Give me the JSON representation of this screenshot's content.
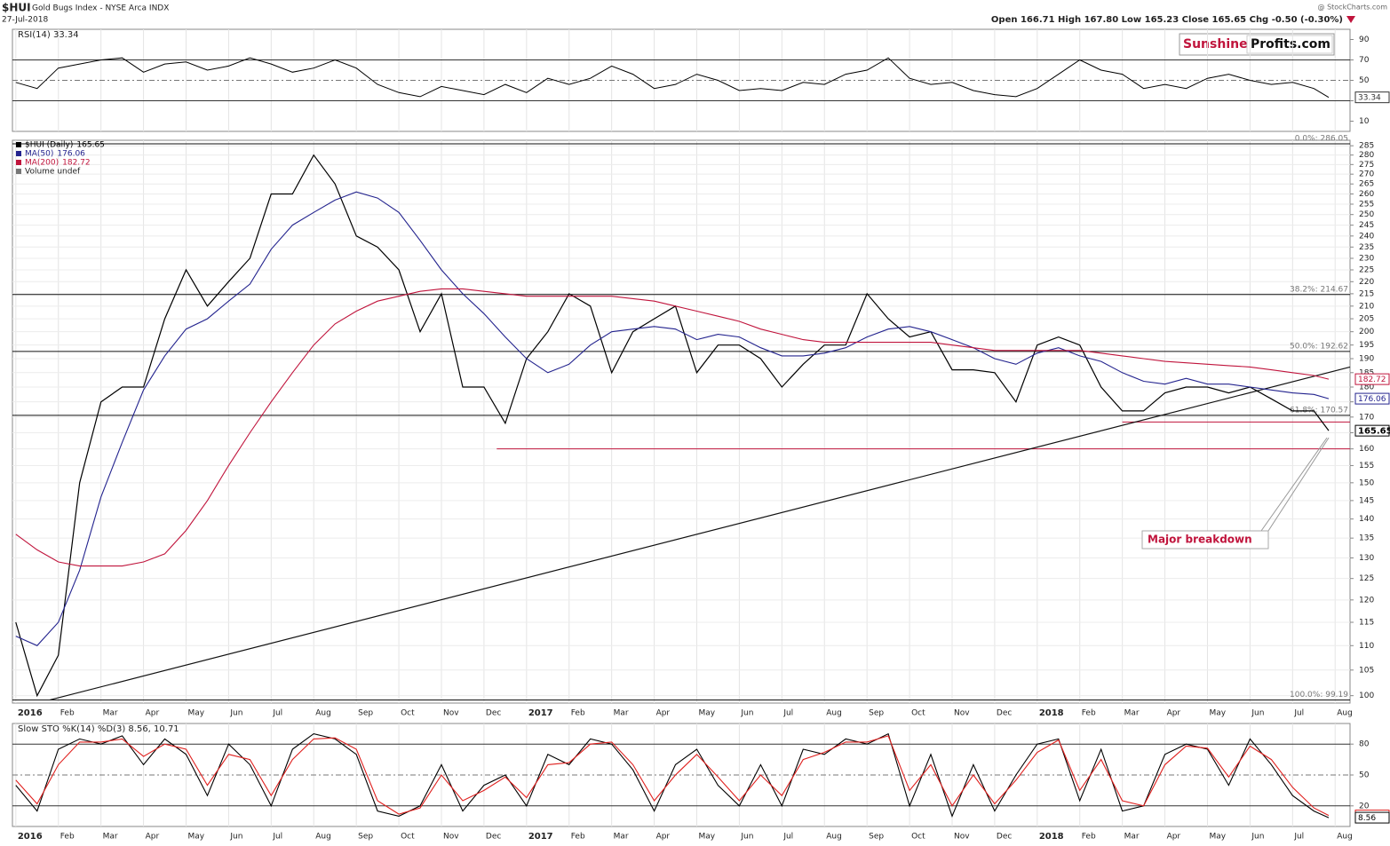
{
  "header": {
    "symbol": "$HUI",
    "name": "Gold Bugs Index - NYSE Arca INDX",
    "date": "27-Jul-2018",
    "source": "@ StockCharts.com",
    "quote": "Open 166.71 High 167.80 Low 165.23 Close 165.65 Chg -0.50 (-0.30%)",
    "logo": {
      "red": "Sunshine",
      "black": "Profits.com"
    }
  },
  "chart_data": [
    {
      "type": "line",
      "title": "RSI(14) 33.34",
      "color": "#000000",
      "x": [
        0,
        0.5,
        1,
        1.5,
        2,
        2.5,
        3,
        3.5,
        4,
        4.5,
        5,
        5.5,
        6,
        6.5,
        7,
        7.5,
        8,
        8.5,
        9,
        9.5,
        10,
        10.5,
        11,
        11.5,
        12,
        12.5,
        13,
        13.5,
        14,
        14.5,
        15,
        15.5,
        16,
        16.5,
        17,
        17.5,
        18,
        18.5,
        19,
        19.5,
        20,
        20.5,
        21,
        21.5,
        22,
        22.5,
        23,
        23.5,
        24,
        24.5,
        25,
        25.5,
        26,
        26.5,
        27,
        27.5,
        28,
        28.5,
        29,
        29.5,
        30,
        30.5,
        30.85
      ],
      "values": [
        48,
        42,
        62,
        66,
        70,
        72,
        58,
        66,
        68,
        60,
        64,
        72,
        66,
        58,
        62,
        70,
        62,
        46,
        38,
        34,
        44,
        40,
        36,
        46,
        38,
        52,
        46,
        52,
        64,
        56,
        42,
        46,
        56,
        50,
        40,
        42,
        40,
        48,
        46,
        56,
        60,
        72,
        52,
        46,
        48,
        40,
        36,
        34,
        42,
        56,
        70,
        60,
        56,
        42,
        46,
        42,
        52,
        56,
        50,
        46,
        48,
        42,
        33.34
      ],
      "xlim": [
        -0.08,
        31.35
      ],
      "ylim": [
        0,
        100
      ],
      "yticks": [
        10,
        30,
        50,
        70,
        90
      ],
      "level_lines": [
        {
          "value": 70,
          "dashed": false
        },
        {
          "value": 50,
          "dashed": true
        },
        {
          "value": 30,
          "dashed": false
        }
      ]
    },
    {
      "type": "line",
      "log_scale": true,
      "grid": true,
      "volume_label": "Volume undef",
      "x": [
        0,
        0.5,
        1,
        1.5,
        2,
        2.5,
        3,
        3.5,
        4,
        4.5,
        5,
        5.5,
        6,
        6.5,
        7,
        7.5,
        8,
        8.5,
        9,
        9.5,
        10,
        10.5,
        11,
        11.5,
        12,
        12.5,
        13,
        13.5,
        14,
        14.5,
        15,
        15.5,
        16,
        16.5,
        17,
        17.5,
        18,
        18.5,
        19,
        19.5,
        20,
        20.5,
        21,
        21.5,
        22,
        22.5,
        23,
        23.5,
        24,
        24.5,
        25,
        25.5,
        26,
        26.5,
        27,
        27.5,
        28,
        28.5,
        29,
        29.5,
        30,
        30.5,
        30.85
      ],
      "series": [
        {
          "name": "$HUI (Daily)",
          "color": "#000000",
          "values": [
            115,
            100,
            108,
            150,
            175,
            180,
            180,
            205,
            225,
            210,
            220,
            230,
            260,
            260,
            280,
            265,
            240,
            235,
            225,
            200,
            215,
            180,
            180,
            168,
            190,
            200,
            215,
            210,
            185,
            200,
            205,
            210,
            185,
            195,
            195,
            190,
            180,
            188,
            195,
            195,
            215,
            205,
            198,
            200,
            186,
            186,
            185,
            175,
            195,
            198,
            195,
            180,
            172,
            172,
            178,
            180,
            180,
            178,
            180,
            176,
            172,
            172,
            165.65
          ]
        },
        {
          "name": "MA(50)",
          "color": "#23238e",
          "values": [
            112,
            110,
            115,
            127,
            146,
            162,
            179,
            191,
            201,
            205,
            212,
            219,
            234,
            245,
            251,
            257,
            261,
            258,
            251,
            238,
            225,
            215,
            207,
            198,
            190,
            185,
            188,
            195,
            200,
            201,
            202,
            201,
            197,
            199,
            198,
            194,
            191,
            191,
            192,
            194,
            198,
            201,
            202,
            200,
            197,
            194,
            190,
            188,
            192,
            194,
            191,
            189,
            185,
            182,
            181,
            183,
            181,
            181,
            180,
            179,
            178,
            177.5,
            176.06
          ]
        },
        {
          "name": "MA(200)",
          "color": "#c0143c",
          "values": [
            136,
            132,
            129,
            128,
            128,
            128,
            129,
            131,
            137,
            145,
            155,
            165,
            175,
            185,
            195,
            203,
            208,
            212,
            214,
            216,
            217,
            217,
            216,
            215,
            214,
            214,
            214,
            214,
            214,
            213,
            212,
            210,
            208,
            206,
            204,
            201,
            199,
            197,
            196,
            196,
            196,
            196,
            196,
            196,
            195,
            194,
            193,
            193,
            193,
            193,
            193,
            192,
            191,
            190,
            189,
            188.5,
            188,
            187.5,
            187,
            186,
            185,
            184,
            182.72
          ]
        }
      ],
      "xlim": [
        -0.08,
        31.35
      ],
      "ylim": [
        98.6,
        288
      ],
      "yticks": [
        100,
        105,
        110,
        115,
        120,
        125,
        130,
        135,
        140,
        145,
        150,
        155,
        160,
        165,
        170,
        175,
        180,
        185,
        190,
        195,
        200,
        205,
        210,
        215,
        220,
        225,
        230,
        235,
        240,
        245,
        250,
        255,
        260,
        265,
        270,
        275,
        280,
        285
      ],
      "xticks": [
        {
          "value": 0,
          "label": "2016"
        },
        {
          "value": 1,
          "label": "Feb"
        },
        {
          "value": 2,
          "label": "Mar"
        },
        {
          "value": 3,
          "label": "Apr"
        },
        {
          "value": 4,
          "label": "May"
        },
        {
          "value": 5,
          "label": "Jun"
        },
        {
          "value": 6,
          "label": "Jul"
        },
        {
          "value": 7,
          "label": "Aug"
        },
        {
          "value": 8,
          "label": "Sep"
        },
        {
          "value": 9,
          "label": "Oct"
        },
        {
          "value": 10,
          "label": "Nov"
        },
        {
          "value": 11,
          "label": "Dec"
        },
        {
          "value": 12,
          "label": "2017"
        },
        {
          "value": 13,
          "label": "Feb"
        },
        {
          "value": 14,
          "label": "Mar"
        },
        {
          "value": 15,
          "label": "Apr"
        },
        {
          "value": 16,
          "label": "May"
        },
        {
          "value": 17,
          "label": "Jun"
        },
        {
          "value": 18,
          "label": "Jul"
        },
        {
          "value": 19,
          "label": "Aug"
        },
        {
          "value": 20,
          "label": "Sep"
        },
        {
          "value": 21,
          "label": "Oct"
        },
        {
          "value": 22,
          "label": "Nov"
        },
        {
          "value": 23,
          "label": "Dec"
        },
        {
          "value": 24,
          "label": "2018"
        },
        {
          "value": 25,
          "label": "Feb"
        },
        {
          "value": 26,
          "label": "Mar"
        },
        {
          "value": 27,
          "label": "Apr"
        },
        {
          "value": 28,
          "label": "May"
        },
        {
          "value": 29,
          "label": "Jun"
        },
        {
          "value": 30,
          "label": "Jul"
        },
        {
          "value": 31,
          "label": "Aug"
        }
      ],
      "fib_levels": [
        {
          "value": 286.05,
          "label": "0.0%: 286.05"
        },
        {
          "value": 214.67,
          "label": "38.2%: 214.67"
        },
        {
          "value": 192.62,
          "label": "50.0%: 192.62"
        },
        {
          "value": 170.57,
          "label": "61.8%: 170.57"
        },
        {
          "value": 99.19,
          "label": "100.0%: 99.19"
        }
      ],
      "support_lines": [
        {
          "from": 11.3,
          "value": 160,
          "color": "#c0143c"
        },
        {
          "from": 26.0,
          "value": 168.4,
          "color": "#c0143c"
        }
      ],
      "trendline": {
        "x": [
          0.8,
          31.35
        ],
        "y": [
          99.19,
          187
        ]
      },
      "annotation": "Major breakdown"
    },
    {
      "type": "line",
      "title": "Slow STO %K(14) %D(3) 8.56, 10.71",
      "x": [
        0,
        0.5,
        1,
        1.5,
        2,
        2.5,
        3,
        3.5,
        4,
        4.5,
        5,
        5.5,
        6,
        6.5,
        7,
        7.5,
        8,
        8.5,
        9,
        9.5,
        10,
        10.5,
        11,
        11.5,
        12,
        12.5,
        13,
        13.5,
        14,
        14.5,
        15,
        15.5,
        16,
        16.5,
        17,
        17.5,
        18,
        18.5,
        19,
        19.5,
        20,
        20.5,
        21,
        21.5,
        22,
        22.5,
        23,
        23.5,
        24,
        24.5,
        25,
        25.5,
        26,
        26.5,
        27,
        27.5,
        28,
        28.5,
        29,
        29.5,
        30,
        30.5,
        30.85
      ],
      "series": [
        {
          "color": "#000000",
          "values": [
            40,
            15,
            75,
            85,
            80,
            88,
            60,
            85,
            70,
            30,
            80,
            60,
            20,
            75,
            90,
            85,
            70,
            15,
            10,
            20,
            60,
            15,
            40,
            50,
            20,
            70,
            60,
            85,
            80,
            55,
            15,
            60,
            75,
            40,
            20,
            60,
            20,
            75,
            70,
            85,
            80,
            90,
            20,
            70,
            10,
            60,
            15,
            50,
            80,
            85,
            25,
            75,
            15,
            20,
            70,
            80,
            75,
            40,
            85,
            60,
            30,
            15,
            8.56
          ]
        },
        {
          "color": "#e0201e",
          "values": [
            45,
            22,
            60,
            82,
            82,
            85,
            68,
            80,
            75,
            40,
            70,
            65,
            30,
            65,
            85,
            86,
            75,
            25,
            12,
            18,
            50,
            25,
            35,
            48,
            28,
            60,
            62,
            80,
            82,
            60,
            25,
            50,
            70,
            48,
            25,
            50,
            30,
            65,
            72,
            82,
            82,
            88,
            35,
            60,
            20,
            50,
            22,
            45,
            72,
            84,
            35,
            65,
            25,
            20,
            60,
            78,
            76,
            48,
            78,
            65,
            38,
            18,
            10.71
          ]
        }
      ],
      "xlim": [
        -0.08,
        31.35
      ],
      "ylim": [
        0,
        100
      ],
      "yticks": [
        20,
        50,
        80
      ],
      "xticks": [
        {
          "value": 0,
          "label": "2016"
        },
        {
          "value": 1,
          "label": "Feb"
        },
        {
          "value": 2,
          "label": "Mar"
        },
        {
          "value": 3,
          "label": "Apr"
        },
        {
          "value": 4,
          "label": "May"
        },
        {
          "value": 5,
          "label": "Jun"
        },
        {
          "value": 6,
          "label": "Jul"
        },
        {
          "value": 7,
          "label": "Aug"
        },
        {
          "value": 8,
          "label": "Sep"
        },
        {
          "value": 9,
          "label": "Oct"
        },
        {
          "value": 10,
          "label": "Nov"
        },
        {
          "value": 11,
          "label": "Dec"
        },
        {
          "value": 12,
          "label": "2017"
        },
        {
          "value": 13,
          "label": "Feb"
        },
        {
          "value": 14,
          "label": "Mar"
        },
        {
          "value": 15,
          "label": "Apr"
        },
        {
          "value": 16,
          "label": "May"
        },
        {
          "value": 17,
          "label": "Jun"
        },
        {
          "value": 18,
          "label": "Jul"
        },
        {
          "value": 19,
          "label": "Aug"
        },
        {
          "value": 20,
          "label": "Sep"
        },
        {
          "value": 21,
          "label": "Oct"
        },
        {
          "value": 22,
          "label": "Nov"
        },
        {
          "value": 23,
          "label": "Dec"
        },
        {
          "value": 24,
          "label": "2018"
        },
        {
          "value": 25,
          "label": "Feb"
        },
        {
          "value": 26,
          "label": "Mar"
        },
        {
          "value": 27,
          "label": "Apr"
        },
        {
          "value": 28,
          "label": "May"
        },
        {
          "value": 29,
          "label": "Jun"
        },
        {
          "value": 30,
          "label": "Jul"
        },
        {
          "value": 31,
          "label": "Aug"
        }
      ],
      "level_lines": [
        {
          "value": 80,
          "dashed": false
        },
        {
          "value": 50,
          "dashed": true
        },
        {
          "value": 20,
          "dashed": false
        }
      ]
    }
  ]
}
